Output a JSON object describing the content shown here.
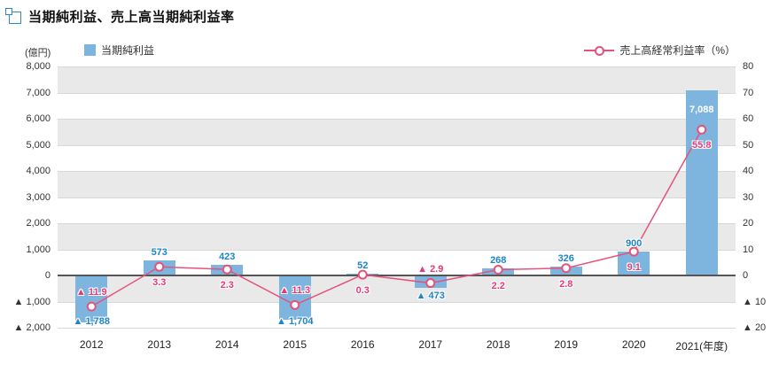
{
  "title": "当期純利益、売上高当期純利益率",
  "legend": {
    "unit": "(億円)",
    "bar_label": "当期純利益",
    "line_label": "売上高経常利益率（%）"
  },
  "colors": {
    "bar": "#7eb5de",
    "bar_label": "#1d85c7",
    "line": "#e5527b",
    "line_label": "#e6397a",
    "band": "#e9e9e9",
    "grid": "#d8d8d8",
    "zero_line": "#555555",
    "axis_text": "#333333"
  },
  "chart_data": {
    "type": "bar",
    "subtype": "bar-with-line-overlay",
    "title": "当期純利益、売上高当期純利益率",
    "categories": [
      "2012",
      "2013",
      "2014",
      "2015",
      "2016",
      "2017",
      "2018",
      "2019",
      "2020",
      "2021"
    ],
    "x_axis_labels": [
      "2012",
      "2013",
      "2014",
      "2015",
      "2016",
      "2017",
      "2018",
      "2019",
      "2020",
      "2021(年度)"
    ],
    "series": [
      {
        "name": "当期純利益",
        "type": "bar",
        "axis": "left",
        "values": [
          -1788,
          573,
          423,
          -1704,
          52,
          -473,
          268,
          326,
          900,
          7088
        ],
        "labels": [
          "▲ 1,788",
          "573",
          "423",
          "▲ 1,704",
          "52",
          "▲ 473",
          "268",
          "326",
          "900",
          "7,088"
        ]
      },
      {
        "name": "売上高経常利益率（%）",
        "type": "line",
        "axis": "right",
        "values": [
          -11.9,
          3.3,
          2.3,
          -11.3,
          0.3,
          -2.9,
          2.2,
          2.8,
          9.1,
          55.8
        ],
        "labels": [
          "▲ 11.9",
          "3.3",
          "2.3",
          "▲ 11.3",
          "0.3",
          "▲ 2.9",
          "2.2",
          "2.8",
          "9.1",
          "55.8"
        ]
      }
    ],
    "left_axis": {
      "unit": "(億円)",
      "min": -2000,
      "max": 8000,
      "step": 1000,
      "ticks": [
        "8,000",
        "7,000",
        "6,000",
        "5,000",
        "4,000",
        "3,000",
        "2,000",
        "1,000",
        "0",
        "▲ 1,000",
        "▲ 2,000"
      ]
    },
    "right_axis": {
      "min": -20,
      "max": 80,
      "step": 10,
      "ticks": [
        "80",
        "70",
        "60",
        "50",
        "40",
        "30",
        "20",
        "10",
        "0",
        "▲ 10",
        "▲ 20"
      ]
    },
    "grid": true,
    "band_striping": "alternating-horizontal",
    "legend_position": "top"
  }
}
